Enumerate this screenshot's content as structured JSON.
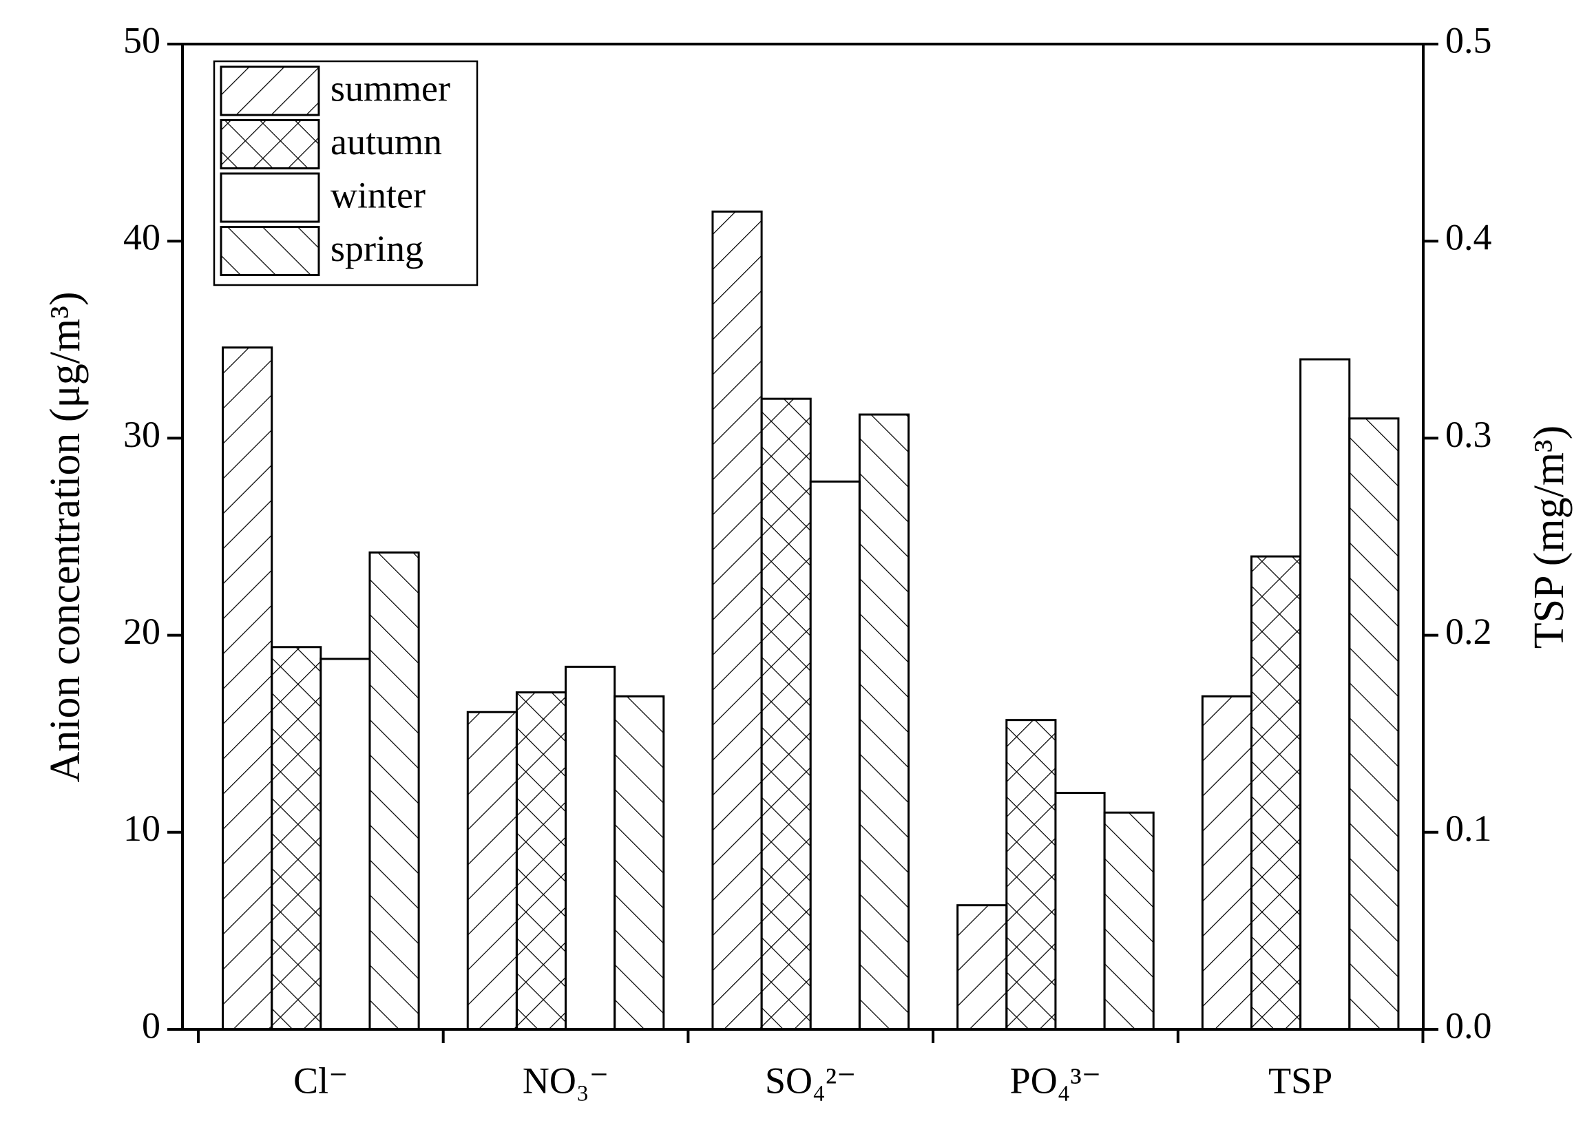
{
  "chart_data": {
    "type": "bar",
    "categories": [
      "Cl⁻",
      "NO₃⁻",
      "SO₄²⁻",
      "PO₄³⁻",
      "TSP"
    ],
    "ylabel": "Anion concentration (μg/m³)",
    "y2label": "TSP (mg/m³)",
    "series": [
      {
        "name": "summer",
        "hatch": "/",
        "values": [
          34.6,
          16.1,
          41.5,
          6.3,
          null
        ],
        "y2_values": [
          null,
          null,
          null,
          null,
          0.169
        ]
      },
      {
        "name": "autumn",
        "hatch": "x",
        "values": [
          19.4,
          17.1,
          32.0,
          15.7,
          null
        ],
        "y2_values": [
          null,
          null,
          null,
          null,
          0.24
        ]
      },
      {
        "name": "winter",
        "hatch": "",
        "values": [
          18.8,
          18.4,
          27.8,
          12.0,
          null
        ],
        "y2_values": [
          null,
          null,
          null,
          null,
          0.34
        ]
      },
      {
        "name": "spring",
        "hatch": "\\",
        "values": [
          24.2,
          16.9,
          31.2,
          11.0,
          null
        ],
        "y2_values": [
          null,
          null,
          null,
          null,
          0.31
        ]
      }
    ],
    "ylim": [
      0,
      50
    ],
    "yticks": [
      0,
      10,
      20,
      30,
      40,
      50
    ],
    "y2lim": [
      0,
      0.5
    ],
    "y2ticks": [
      {
        "value": 0,
        "label": "0.0"
      },
      0.1,
      0.2,
      0.3,
      0.4,
      0.5
    ],
    "legend": "upper left",
    "edge_color": "#000000"
  }
}
